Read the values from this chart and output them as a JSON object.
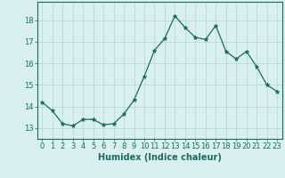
{
  "x": [
    0,
    1,
    2,
    3,
    4,
    5,
    6,
    7,
    8,
    9,
    10,
    11,
    12,
    13,
    14,
    15,
    16,
    17,
    18,
    19,
    20,
    21,
    22,
    23
  ],
  "y": [
    14.2,
    13.8,
    13.2,
    13.1,
    13.4,
    13.4,
    13.15,
    13.2,
    13.65,
    14.3,
    15.4,
    16.6,
    17.15,
    18.2,
    17.65,
    17.2,
    17.1,
    17.75,
    16.55,
    16.2,
    16.55,
    15.85,
    15.0,
    14.7
  ],
  "xlabel": "Humidex (Indice chaleur)",
  "ylim": [
    12.5,
    18.85
  ],
  "xlim": [
    -0.5,
    23.5
  ],
  "yticks": [
    13,
    14,
    15,
    16,
    17,
    18
  ],
  "xticks": [
    0,
    1,
    2,
    3,
    4,
    5,
    6,
    7,
    8,
    9,
    10,
    11,
    12,
    13,
    14,
    15,
    16,
    17,
    18,
    19,
    20,
    21,
    22,
    23
  ],
  "line_color": "#1a6b5e",
  "marker": "*",
  "marker_size": 3.5,
  "bg_color": "#d9f0f0",
  "grid_color": "#b5d5d5",
  "tick_color": "#1a6b5e",
  "label_color": "#1a6b5e",
  "font_size_axis": 7,
  "font_size_ticks": 6
}
